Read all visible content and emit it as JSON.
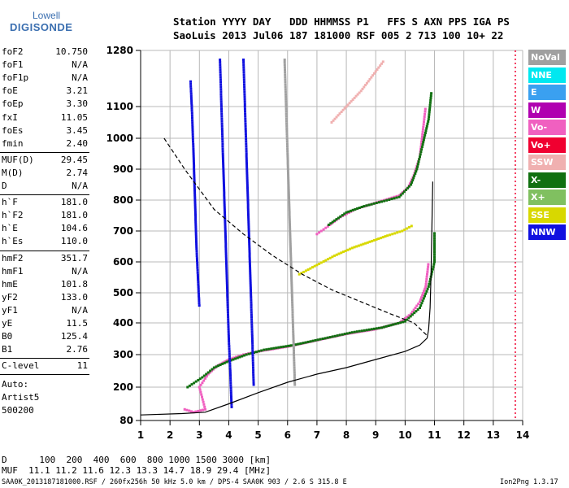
{
  "logo": {
    "top": "Lowell",
    "bottom": "DIGISONDE"
  },
  "header": {
    "line1": "Station YYYY DAY   DDD HHMMSS P1   FFS S AXN PPS IGA PS",
    "line2": "SaoLuis 2013 Jul06 187 181000 RSF 005 2 713 100 10+ 22"
  },
  "parameters": {
    "group1": [
      {
        "name": "foF2",
        "value": "10.750"
      },
      {
        "name": "foF1",
        "value": "N/A"
      },
      {
        "name": "foF1p",
        "value": "N/A"
      },
      {
        "name": "foE",
        "value": "3.21"
      },
      {
        "name": "foEp",
        "value": "3.30"
      },
      {
        "name": "fxI",
        "value": "11.05"
      },
      {
        "name": "foEs",
        "value": "3.45"
      },
      {
        "name": "fmin",
        "value": "2.40"
      }
    ],
    "group2": [
      {
        "name": "MUF(D)",
        "value": "29.45"
      },
      {
        "name": "M(D)",
        "value": "2.74"
      },
      {
        "name": "D",
        "value": "N/A"
      }
    ],
    "group3": [
      {
        "name": "h`F",
        "value": "181.0"
      },
      {
        "name": "h`F2",
        "value": "181.0"
      },
      {
        "name": "h`E",
        "value": "104.6"
      },
      {
        "name": "h`Es",
        "value": "110.0"
      }
    ],
    "group4": [
      {
        "name": "hmF2",
        "value": "351.7"
      },
      {
        "name": "hmF1",
        "value": "N/A"
      },
      {
        "name": "hmE",
        "value": "101.8"
      },
      {
        "name": "yF2",
        "value": "133.0"
      },
      {
        "name": "yF1",
        "value": "N/A"
      },
      {
        "name": "yE",
        "value": "11.5"
      },
      {
        "name": "B0",
        "value": "125.4"
      },
      {
        "name": "B1",
        "value": "2.76"
      }
    ],
    "group5": [
      {
        "name": "C-level",
        "value": "11"
      }
    ],
    "autoscaling": [
      "Auto:",
      "Artist5",
      "500200"
    ]
  },
  "legend": [
    {
      "label": "NoVal",
      "color": "#a0a0a0"
    },
    {
      "label": "NNE",
      "color": "#00e8f0"
    },
    {
      "label": "E",
      "color": "#3aa0f0"
    },
    {
      "label": "W",
      "color": "#b000b0"
    },
    {
      "label": "Vo-",
      "color": "#f060c0"
    },
    {
      "label": "Vo+",
      "color": "#f00030"
    },
    {
      "label": "SSW",
      "color": "#f0b0b0"
    },
    {
      "label": "X-",
      "color": "#107010"
    },
    {
      "label": "X+",
      "color": "#80c060"
    },
    {
      "label": "SSE",
      "color": "#d8d800"
    },
    {
      "label": "NNW",
      "color": "#1010e0"
    }
  ],
  "chart_data": {
    "type": "scatter",
    "xlabel": "",
    "ylabel": "",
    "xlim": [
      1,
      14
    ],
    "ylim": [
      80,
      1280
    ],
    "x_ticks": [
      "1",
      "2",
      "3",
      "4",
      "5",
      "6",
      "7",
      "8",
      "9",
      "10",
      "11",
      "12",
      "13",
      "14"
    ],
    "y_ticks": [
      "80",
      "200",
      "300",
      "400",
      "500",
      "600",
      "700",
      "800",
      "900",
      "1000",
      "1100",
      "1280"
    ],
    "y_tick_values": [
      80,
      200,
      300,
      400,
      500,
      600,
      700,
      800,
      900,
      1000,
      1100,
      1280
    ],
    "grid": true,
    "series": [
      {
        "kind": "trace",
        "color": "#f060c0",
        "points": [
          [
            2.5,
            120
          ],
          [
            2.8,
            110
          ],
          [
            3.2,
            120
          ],
          [
            3.0,
            200
          ],
          [
            3.3,
            240
          ],
          [
            3.6,
            265
          ],
          [
            4.0,
            285
          ],
          [
            4.5,
            300
          ],
          [
            5.0,
            310
          ],
          [
            6.0,
            325
          ],
          [
            7.0,
            345
          ],
          [
            8.0,
            365
          ],
          [
            9.0,
            380
          ],
          [
            9.8,
            400
          ],
          [
            10.2,
            430
          ],
          [
            10.5,
            470
          ],
          [
            10.7,
            520
          ],
          [
            10.8,
            600
          ]
        ]
      },
      {
        "kind": "trace",
        "color": "#107010",
        "points": [
          [
            2.6,
            200
          ],
          [
            3.1,
            230
          ],
          [
            3.5,
            260
          ],
          [
            4.0,
            280
          ],
          [
            4.6,
            300
          ],
          [
            5.2,
            315
          ],
          [
            6.2,
            330
          ],
          [
            7.2,
            350
          ],
          [
            8.2,
            370
          ],
          [
            9.2,
            385
          ],
          [
            10.0,
            405
          ],
          [
            10.5,
            450
          ],
          [
            10.8,
            520
          ],
          [
            11.0,
            600
          ],
          [
            11.0,
            700
          ]
        ]
      },
      {
        "kind": "trace",
        "color": "#f060c0",
        "points": [
          [
            7.0,
            690
          ],
          [
            7.3,
            710
          ],
          [
            7.8,
            745
          ],
          [
            8.3,
            770
          ],
          [
            8.8,
            785
          ],
          [
            9.3,
            800
          ],
          [
            9.8,
            815
          ],
          [
            10.1,
            840
          ],
          [
            10.3,
            880
          ],
          [
            10.5,
            940
          ],
          [
            10.6,
            1020
          ],
          [
            10.7,
            1100
          ]
        ]
      },
      {
        "kind": "trace",
        "color": "#107010",
        "points": [
          [
            7.4,
            720
          ],
          [
            8.0,
            760
          ],
          [
            8.6,
            780
          ],
          [
            9.2,
            795
          ],
          [
            9.8,
            810
          ],
          [
            10.2,
            850
          ],
          [
            10.4,
            900
          ],
          [
            10.6,
            980
          ],
          [
            10.8,
            1060
          ],
          [
            10.9,
            1150
          ]
        ]
      },
      {
        "kind": "trace",
        "color": "#d8d800",
        "points": [
          [
            6.4,
            560
          ],
          [
            7.0,
            590
          ],
          [
            7.6,
            620
          ],
          [
            8.2,
            645
          ],
          [
            8.8,
            665
          ],
          [
            9.4,
            685
          ],
          [
            9.9,
            700
          ],
          [
            10.3,
            720
          ]
        ]
      },
      {
        "kind": "trace",
        "color": "#f0b0b0",
        "points": [
          [
            7.5,
            1050
          ],
          [
            8.0,
            1100
          ],
          [
            8.5,
            1150
          ],
          [
            8.9,
            1200
          ],
          [
            9.3,
            1250
          ]
        ]
      },
      {
        "kind": "trace",
        "color": "#1010e0",
        "points": [
          [
            3.7,
            1250
          ],
          [
            3.75,
            1100
          ],
          [
            3.8,
            950
          ],
          [
            3.85,
            800
          ],
          [
            3.9,
            650
          ],
          [
            3.95,
            500
          ],
          [
            4.0,
            350
          ],
          [
            4.05,
            250
          ],
          [
            4.1,
            120
          ]
        ]
      },
      {
        "kind": "trace",
        "color": "#1010e0",
        "points": [
          [
            4.5,
            1250
          ],
          [
            4.55,
            1100
          ],
          [
            4.6,
            950
          ],
          [
            4.65,
            800
          ],
          [
            4.7,
            650
          ],
          [
            4.75,
            500
          ],
          [
            4.8,
            350
          ],
          [
            4.85,
            200
          ]
        ]
      },
      {
        "kind": "trace",
        "color": "#1010e0",
        "points": [
          [
            2.7,
            1180
          ],
          [
            2.75,
            1080
          ],
          [
            2.8,
            950
          ],
          [
            2.85,
            800
          ],
          [
            2.9,
            650
          ],
          [
            2.95,
            550
          ],
          [
            3.0,
            450
          ]
        ]
      },
      {
        "kind": "trace",
        "color": "#a0a0a0",
        "points": [
          [
            5.9,
            1250
          ],
          [
            5.95,
            1100
          ],
          [
            6.0,
            950
          ],
          [
            6.05,
            800
          ],
          [
            6.1,
            650
          ],
          [
            6.15,
            500
          ],
          [
            6.2,
            350
          ],
          [
            6.25,
            200
          ]
        ]
      },
      {
        "kind": "profile",
        "style": "solid",
        "color": "#000000",
        "points": [
          [
            1.0,
            100
          ],
          [
            2.4,
            105
          ],
          [
            3.2,
            110
          ],
          [
            4.0,
            140
          ],
          [
            5.0,
            180
          ],
          [
            6.0,
            215
          ],
          [
            7.0,
            240
          ],
          [
            8.0,
            260
          ],
          [
            9.0,
            285
          ],
          [
            10.0,
            310
          ],
          [
            10.5,
            330
          ],
          [
            10.75,
            352
          ]
        ]
      },
      {
        "kind": "profile",
        "style": "solid",
        "color": "#000000",
        "points": [
          [
            10.75,
            352
          ],
          [
            10.8,
            380
          ],
          [
            10.85,
            450
          ],
          [
            10.88,
            550
          ],
          [
            10.9,
            650
          ],
          [
            10.92,
            750
          ],
          [
            10.94,
            860
          ]
        ]
      },
      {
        "kind": "profile",
        "style": "dashed",
        "color": "#000000",
        "points": [
          [
            1.8,
            1000
          ],
          [
            2.5,
            900
          ],
          [
            3.5,
            770
          ],
          [
            4.5,
            690
          ],
          [
            5.5,
            620
          ],
          [
            6.5,
            560
          ],
          [
            7.5,
            510
          ],
          [
            8.5,
            470
          ],
          [
            9.5,
            430
          ],
          [
            10.3,
            400
          ],
          [
            10.75,
            360
          ]
        ]
      }
    ],
    "markers": [
      {
        "color": "#f00030",
        "x": 13.75,
        "note": "vertical line"
      }
    ]
  },
  "footer": {
    "line1": "D      100  200  400  600  800 1000 1500 3000 [km]",
    "line2": "MUF  11.1 11.2 11.6 12.3 13.3 14.7 18.9 29.4 [MHz]",
    "line3": "SAA0K_2013187181000.RSF / 260fx256h 50 kHz 5.0 km / DPS-4 SAA0K 903 / 2.6 S 315.8 E",
    "version": "Ion2Png 1.3.17"
  }
}
